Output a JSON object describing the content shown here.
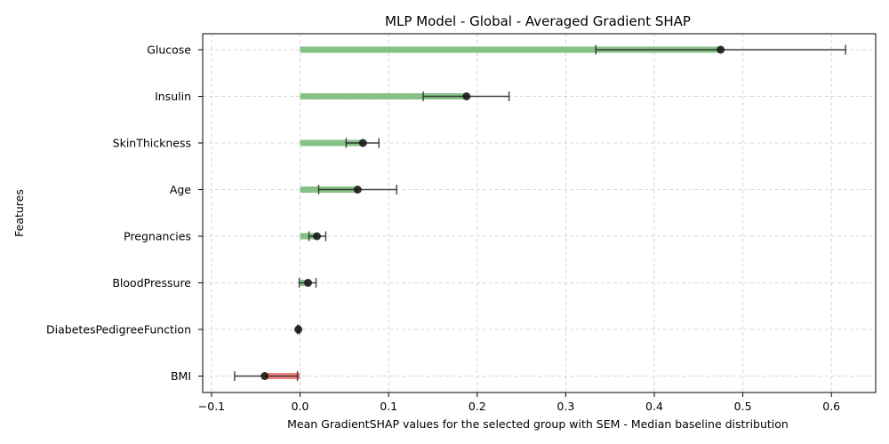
{
  "chart_data": {
    "type": "bar",
    "orientation": "horizontal",
    "title": "MLP Model - Global - Averaged Gradient SHAP",
    "xlabel": "Mean GradientSHAP values for the selected group with SEM - Median baseline distribution",
    "ylabel": "Features",
    "xlim": [
      -0.11,
      0.65
    ],
    "xticks": [
      -0.1,
      0.0,
      0.1,
      0.2,
      0.3,
      0.4,
      0.5,
      0.6
    ],
    "xtick_labels": [
      "−0.1",
      "0.0",
      "0.1",
      "0.2",
      "0.3",
      "0.4",
      "0.5",
      "0.6"
    ],
    "grid": true,
    "categories": [
      "Glucose",
      "Insulin",
      "SkinThickness",
      "Age",
      "Pregnancies",
      "BloodPressure",
      "DiabetesPedigreeFunction",
      "BMI"
    ],
    "values": [
      0.475,
      0.188,
      0.071,
      0.065,
      0.019,
      0.009,
      -0.002,
      -0.04
    ],
    "error_low": [
      0.334,
      0.139,
      0.052,
      0.021,
      0.01,
      -0.001,
      -0.003,
      -0.074
    ],
    "error_high": [
      0.616,
      0.236,
      0.089,
      0.109,
      0.029,
      0.018,
      -0.001,
      -0.003
    ],
    "colors": {
      "positive": "#7fbf7f",
      "negative": "#f08080",
      "marker": "#1a1a1a"
    }
  }
}
